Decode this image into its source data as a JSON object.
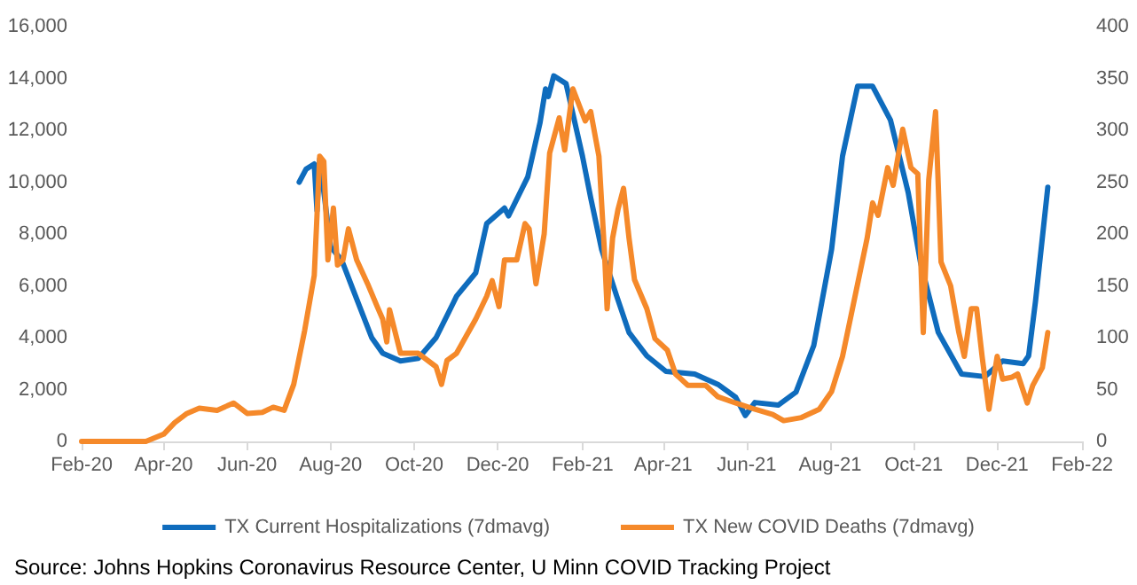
{
  "chart_data": {
    "type": "line",
    "annotations": [
      "Source: Johns Hopkins Coronavirus Resource Center, U Minn COVID Tracking Project"
    ],
    "xlim": [
      "2020-02-01",
      "2022-02-01"
    ],
    "xticks": [
      {
        "value": "2020-02-01",
        "label": "Feb-20"
      },
      {
        "value": "2020-04-01",
        "label": "Apr-20"
      },
      {
        "value": "2020-06-01",
        "label": "Jun-20"
      },
      {
        "value": "2020-08-01",
        "label": "Aug-20"
      },
      {
        "value": "2020-10-01",
        "label": "Oct-20"
      },
      {
        "value": "2020-12-01",
        "label": "Dec-20"
      },
      {
        "value": "2021-02-01",
        "label": "Feb-21"
      },
      {
        "value": "2021-04-01",
        "label": "Apr-21"
      },
      {
        "value": "2021-06-01",
        "label": "Jun-21"
      },
      {
        "value": "2021-08-01",
        "label": "Aug-21"
      },
      {
        "value": "2021-10-01",
        "label": "Oct-21"
      },
      {
        "value": "2021-12-01",
        "label": "Dec-21"
      },
      {
        "value": "2022-02-01",
        "label": "Feb-22"
      }
    ],
    "ylim": [
      0,
      16000
    ],
    "yticks": [
      0,
      {
        "value": 2000,
        "label": "2,000"
      },
      {
        "value": 4000,
        "label": "4,000"
      },
      {
        "value": 6000,
        "label": "6,000"
      },
      {
        "value": 8000,
        "label": "8,000"
      },
      {
        "value": 10000,
        "label": "10,000"
      },
      {
        "value": 12000,
        "label": "12,000"
      },
      {
        "value": 14000,
        "label": "14,000"
      },
      {
        "value": 16000,
        "label": "16,000"
      }
    ],
    "y2lim": [
      0,
      400
    ],
    "y2ticks": [
      0,
      50,
      100,
      150,
      200,
      250,
      300,
      350,
      400
    ],
    "grid": false,
    "legend": "bottom",
    "marker": "none",
    "line_style": "solid",
    "series": [
      {
        "name": "TX Current Hospitalizations (7dmavg)",
        "color": "#0f6cbd",
        "x": [
          "2020-07-09",
          "2020-07-14",
          "2020-07-20",
          "2020-07-22",
          "2020-07-24",
          "2020-08-01",
          "2020-08-09",
          "2020-08-17",
          "2020-08-31",
          "2020-09-08",
          "2020-09-21",
          "2020-10-04",
          "2020-10-17",
          "2020-11-01",
          "2020-11-15",
          "2020-11-23",
          "2020-12-06",
          "2020-12-09",
          "2020-12-23",
          "2021-01-01",
          "2021-01-05",
          "2021-01-07",
          "2021-01-11",
          "2021-01-20",
          "2021-02-01",
          "2021-02-07",
          "2021-02-15",
          "2021-02-26",
          "2021-03-07",
          "2021-03-20",
          "2021-04-03",
          "2021-04-24",
          "2021-05-11",
          "2021-05-24",
          "2021-05-31",
          "2021-06-07",
          "2021-06-24",
          "2021-07-07",
          "2021-07-20",
          "2021-08-02",
          "2021-08-10",
          "2021-08-21",
          "2021-09-01",
          "2021-09-14",
          "2021-09-27",
          "2021-10-06",
          "2021-10-19",
          "2021-11-05",
          "2021-11-22",
          "2021-12-05",
          "2021-12-20",
          "2021-12-24",
          "2021-12-29",
          "2022-01-07"
        ],
        "values": [
          10000,
          10500,
          10700,
          8900,
          10900,
          7500,
          7000,
          5900,
          4000,
          3400,
          3100,
          3200,
          4000,
          5600,
          6500,
          8400,
          9000,
          8700,
          10200,
          12300,
          13600,
          13300,
          14100,
          13800,
          11000,
          9400,
          7400,
          5600,
          4200,
          3300,
          2700,
          2600,
          2200,
          1700,
          1000,
          1500,
          1400,
          1900,
          3700,
          7400,
          11000,
          13700,
          13700,
          12400,
          9600,
          6900,
          4200,
          2600,
          2500,
          3100,
          3000,
          3300,
          5400,
          9800
        ]
      },
      {
        "name": "TX New COVID Deaths (7dmavg)",
        "color": "#f5892a",
        "axis": "y2",
        "x": [
          "2020-02-01",
          "2020-03-19",
          "2020-04-01",
          "2020-04-09",
          "2020-04-18",
          "2020-04-27",
          "2020-05-10",
          "2020-05-22",
          "2020-06-01",
          "2020-06-12",
          "2020-06-20",
          "2020-06-28",
          "2020-07-05",
          "2020-07-13",
          "2020-07-20",
          "2020-07-24",
          "2020-07-27",
          "2020-07-30",
          "2020-08-03",
          "2020-08-06",
          "2020-08-10",
          "2020-08-14",
          "2020-08-20",
          "2020-08-28",
          "2020-09-04",
          "2020-09-08",
          "2020-09-11",
          "2020-09-13",
          "2020-09-21",
          "2020-10-04",
          "2020-10-17",
          "2020-10-21",
          "2020-10-25",
          "2020-11-01",
          "2020-11-15",
          "2020-11-23",
          "2020-11-27",
          "2020-12-02",
          "2020-12-06",
          "2020-12-15",
          "2020-12-21",
          "2020-12-24",
          "2020-12-29",
          "2021-01-04",
          "2021-01-08",
          "2021-01-15",
          "2021-01-19",
          "2021-01-25",
          "2021-02-03",
          "2021-02-07",
          "2021-02-13",
          "2021-02-17",
          "2021-02-19",
          "2021-02-23",
          "2021-02-27",
          "2021-03-03",
          "2021-03-07",
          "2021-03-11",
          "2021-03-20",
          "2021-03-26",
          "2021-04-04",
          "2021-04-10",
          "2021-04-19",
          "2021-05-02",
          "2021-05-11",
          "2021-05-24",
          "2021-06-07",
          "2021-06-20",
          "2021-06-28",
          "2021-07-11",
          "2021-07-24",
          "2021-08-02",
          "2021-08-10",
          "2021-08-19",
          "2021-08-28",
          "2021-09-01",
          "2021-09-05",
          "2021-09-12",
          "2021-09-16",
          "2021-09-23",
          "2021-09-29",
          "2021-10-04",
          "2021-10-08",
          "2021-10-12",
          "2021-10-17",
          "2021-10-21",
          "2021-10-28",
          "2021-11-03",
          "2021-11-07",
          "2021-11-12",
          "2021-11-16",
          "2021-11-20",
          "2021-11-25",
          "2021-12-01",
          "2021-12-05",
          "2021-12-12",
          "2021-12-16",
          "2021-12-23",
          "2021-12-27",
          "2022-01-03",
          "2022-01-07"
        ],
        "values": [
          0,
          0,
          7,
          18,
          27,
          32,
          30,
          37,
          27,
          28,
          33,
          30,
          55,
          107,
          160,
          275,
          270,
          175,
          225,
          170,
          175,
          205,
          175,
          152,
          130,
          118,
          96,
          127,
          85,
          85,
          72,
          55,
          78,
          85,
          118,
          140,
          155,
          130,
          175,
          175,
          210,
          205,
          152,
          200,
          278,
          312,
          281,
          340,
          309,
          318,
          275,
          184,
          128,
          196,
          224,
          244,
          196,
          156,
          128,
          99,
          88,
          65,
          54,
          54,
          43,
          37,
          31,
          26,
          20,
          23,
          31,
          48,
          82,
          139,
          196,
          230,
          218,
          264,
          247,
          301,
          264,
          258,
          105,
          252,
          318,
          173,
          150,
          105,
          82,
          128,
          128,
          82,
          31,
          82,
          60,
          62,
          65,
          37,
          54,
          71,
          105
        ]
      }
    ]
  }
}
